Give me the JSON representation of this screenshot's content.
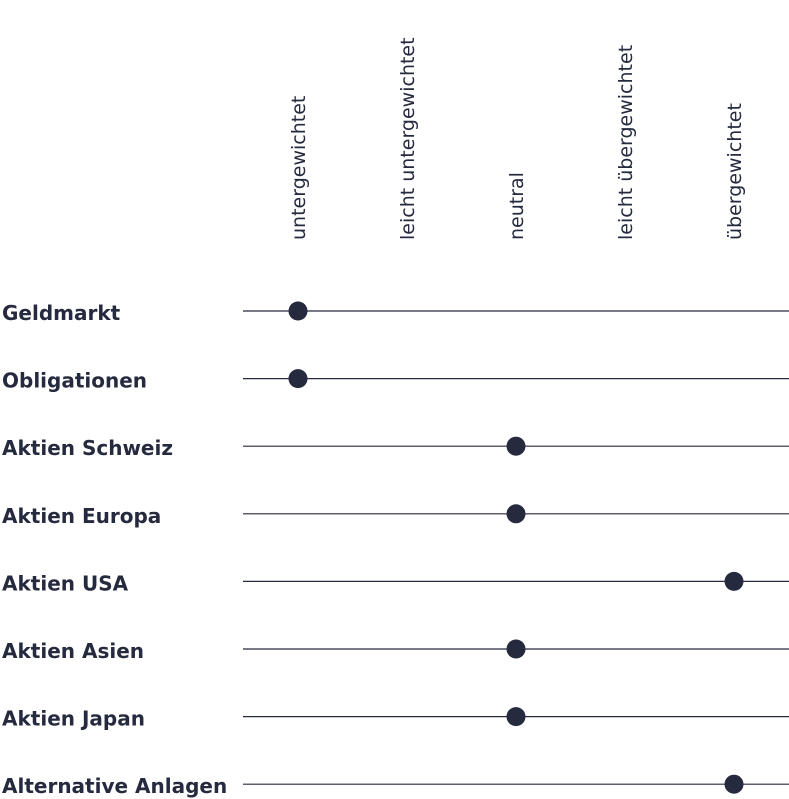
{
  "chart_data": {
    "type": "scatter",
    "categories": [
      "untergewichtet",
      "leicht untergewichtet",
      "neutral",
      "leicht übergewichtet",
      "übergewichtet"
    ],
    "rows": [
      {
        "label": "Geldmarkt",
        "value": "untergewichtet"
      },
      {
        "label": "Obligationen",
        "value": "untergewichtet"
      },
      {
        "label": "Aktien Schweiz",
        "value": "neutral"
      },
      {
        "label": "Aktien Europa",
        "value": "neutral"
      },
      {
        "label": "Aktien USA",
        "value": "übergewichtet"
      },
      {
        "label": "Aktien Asien",
        "value": "neutral"
      },
      {
        "label": "Aktien Japan",
        "value": "neutral"
      },
      {
        "label": "Alternative Anlagen",
        "value": "übergewichtet"
      }
    ],
    "colors": {
      "ink": "#262a3f"
    },
    "grid": false,
    "legend": "none"
  }
}
